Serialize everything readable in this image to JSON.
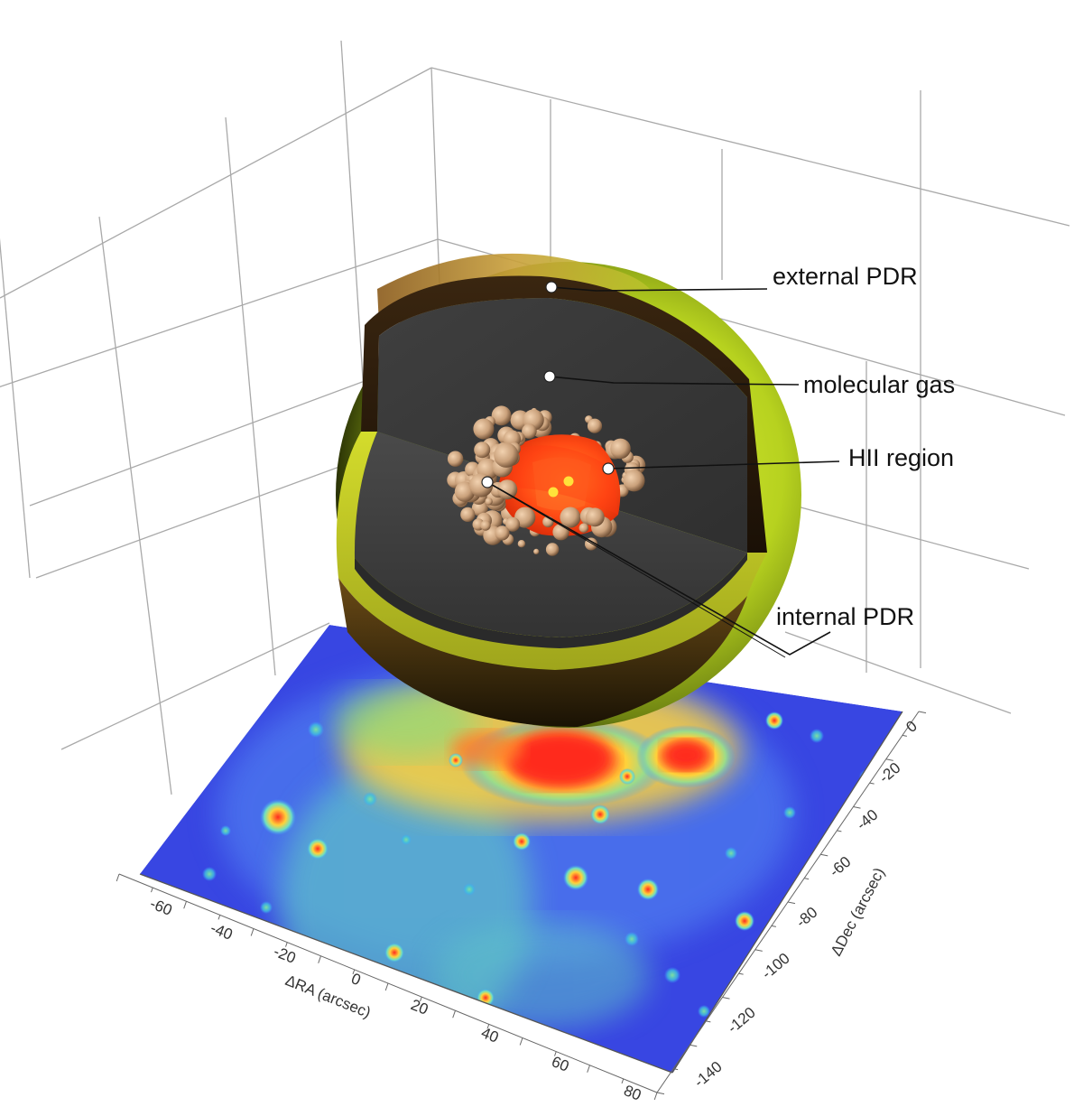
{
  "labels": {
    "external_pdr": "external PDR",
    "molecular_gas": "molecular gas",
    "hii_region": "HII region",
    "internal_pdr": "internal PDR"
  },
  "axes": {
    "ra_label": "ΔRA (arcsec)",
    "dec_label": "ΔDec (arcsec)",
    "ra_ticks": [
      "-60",
      "-40",
      "-20",
      "0",
      "20",
      "40",
      "60",
      "80"
    ],
    "dec_ticks": [
      "0",
      "-20",
      "-40",
      "-60",
      "-80",
      "-100",
      "-120",
      "-140"
    ]
  },
  "colors": {
    "outer_pdr": "#c8e02a",
    "shell_dark": "#2a1a0a",
    "molecular": "#3a3a3a",
    "hii": "#ff4a14",
    "bubbles": "#c9a07a",
    "map_low": "#3545e6",
    "map_high": "#ff2a1f"
  }
}
